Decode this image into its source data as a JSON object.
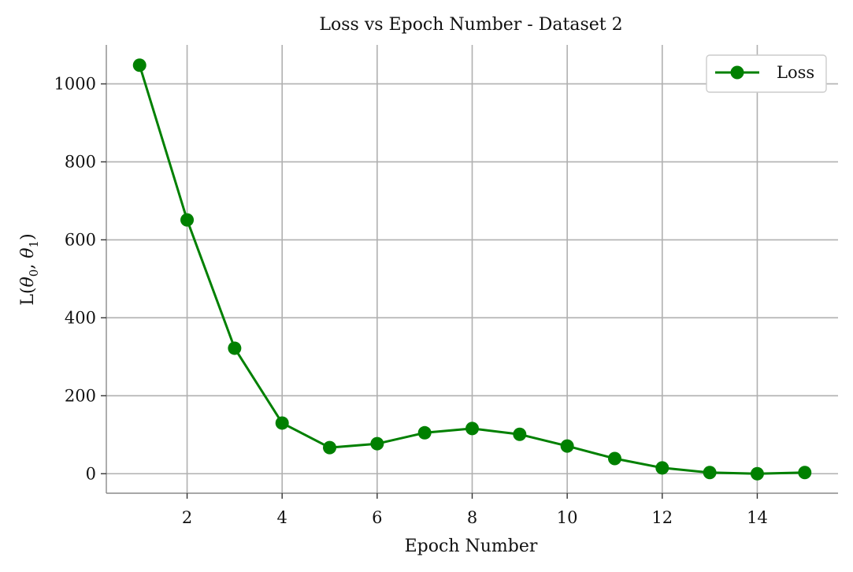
{
  "chart_data": {
    "type": "line",
    "title": "Loss vs Epoch Number - Dataset 2",
    "xlabel": "Epoch Number",
    "ylabel_parts": [
      "L(",
      "θ",
      "0",
      ", ",
      "θ",
      "1",
      ")"
    ],
    "xlim": [
      0.3,
      15.7
    ],
    "ylim": [
      -50,
      1100
    ],
    "xticks": [
      2,
      4,
      6,
      8,
      10,
      12,
      14
    ],
    "yticks": [
      0,
      200,
      400,
      600,
      800,
      1000
    ],
    "grid": true,
    "legend_position": "top-right",
    "series": [
      {
        "name": "Loss",
        "color": "#008000",
        "marker": "circle",
        "x": [
          1,
          2,
          3,
          4,
          5,
          6,
          7,
          8,
          9,
          10,
          11,
          12,
          13,
          14,
          15
        ],
        "y": [
          1048,
          651,
          322,
          130,
          67,
          77,
          105,
          116,
          101,
          71,
          39,
          15,
          3,
          0,
          3
        ]
      }
    ]
  }
}
